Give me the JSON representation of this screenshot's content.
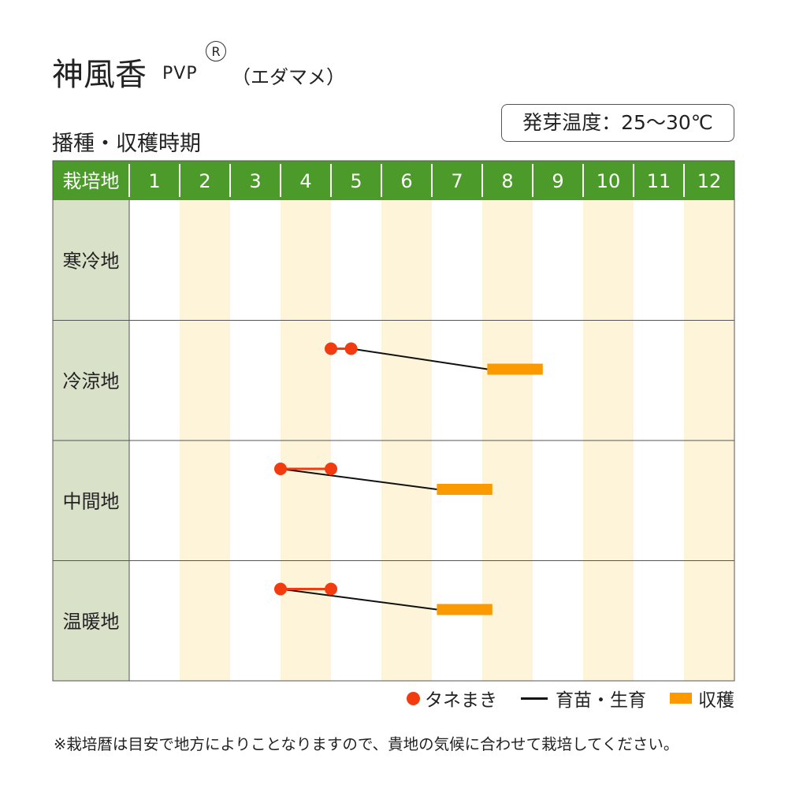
{
  "title": {
    "main": "神風香",
    "pvp": "PVP",
    "reg": "R",
    "kind": "（エダマメ）"
  },
  "subtitle": "播種・収穫時期",
  "temperature": "発芽温度：25～30℃",
  "colors": {
    "header_green": "#4c9a2a",
    "label_bg": "#d9e1c9",
    "stripe": "#fdf4d9",
    "sowing_dot": "#f23c0f",
    "sowing_line": "#f23c0f",
    "growing_line": "#111111",
    "harvest_bar": "#fa9a00"
  },
  "chart_data": {
    "type": "table",
    "header_label": "栽培地",
    "months": [
      "1",
      "2",
      "3",
      "4",
      "5",
      "6",
      "7",
      "8",
      "9",
      "10",
      "11",
      "12"
    ],
    "rows": [
      {
        "region": "寒冷地",
        "sowing": null,
        "harvest": null
      },
      {
        "region": "冷涼地",
        "sowing": [
          5.0,
          5.4
        ],
        "growing": [
          5.4,
          8.1
        ],
        "harvest": [
          8.1,
          9.2
        ]
      },
      {
        "region": "中間地",
        "sowing": [
          4.0,
          5.0
        ],
        "growing": [
          4.0,
          7.1
        ],
        "harvest": [
          7.1,
          8.2
        ]
      },
      {
        "region": "温暖地",
        "sowing": [
          4.0,
          5.0
        ],
        "growing": [
          4.0,
          7.1
        ],
        "harvest": [
          7.1,
          8.2
        ]
      }
    ]
  },
  "legend": {
    "sowing": "タネまき",
    "growing": "育苗・生育",
    "harvest": "収穫"
  },
  "note": "※栽培暦は目安で地方によりことなりますので、貴地の気候に合わせて栽培してください。"
}
